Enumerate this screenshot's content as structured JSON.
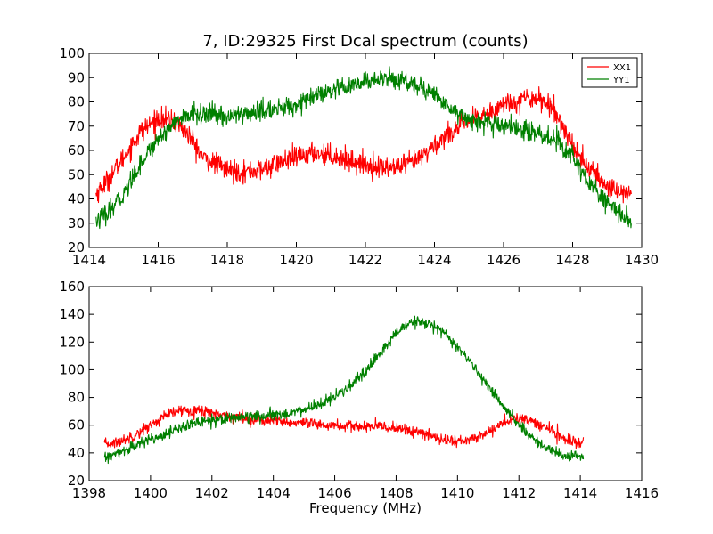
{
  "figure": {
    "title": "7, ID:29325 First Dcal spectrum (counts)",
    "xlabel": "Frequency (MHz)"
  },
  "chart_data": [
    {
      "type": "line",
      "title": "7, ID:29325 First Dcal spectrum (counts)",
      "xlabel": "",
      "ylabel": "",
      "xlim": [
        1414,
        1430
      ],
      "ylim": [
        20,
        100
      ],
      "xticks": [
        "1414",
        "1416",
        "1418",
        "1420",
        "1422",
        "1424",
        "1426",
        "1428",
        "1430"
      ],
      "yticks": [
        "20",
        "30",
        "40",
        "50",
        "60",
        "70",
        "80",
        "90",
        "100"
      ],
      "legend_position": "top-right",
      "grid": false,
      "series": [
        {
          "name": "XX1",
          "color": "#ff0000",
          "noise": 2.2,
          "x": [
            1414.2,
            1414.5,
            1415.0,
            1415.5,
            1416.0,
            1416.5,
            1416.9,
            1417.3,
            1418.0,
            1418.5,
            1419.0,
            1419.5,
            1420.0,
            1420.5,
            1421.0,
            1421.5,
            1422.0,
            1422.5,
            1423.0,
            1423.5,
            1424.0,
            1424.5,
            1425.0,
            1425.5,
            1426.0,
            1426.5,
            1427.0,
            1427.5,
            1428.0,
            1428.5,
            1429.0,
            1429.7
          ],
          "y": [
            42,
            47,
            57,
            68,
            73,
            72,
            66,
            57,
            52,
            51,
            52,
            55,
            57,
            59,
            58,
            56,
            54,
            53,
            53,
            56,
            62,
            68,
            72,
            75,
            79,
            81,
            82,
            76,
            62,
            52,
            45,
            42
          ]
        },
        {
          "name": "YY1",
          "color": "#008000",
          "noise": 2.0,
          "x": [
            1414.2,
            1414.5,
            1415.0,
            1415.5,
            1416.0,
            1416.5,
            1417.0,
            1417.5,
            1418.0,
            1418.5,
            1419.0,
            1419.5,
            1420.0,
            1420.5,
            1421.0,
            1421.5,
            1422.0,
            1422.5,
            1423.0,
            1423.5,
            1424.0,
            1424.5,
            1425.0,
            1425.5,
            1426.0,
            1426.5,
            1427.0,
            1427.5,
            1428.0,
            1428.5,
            1429.0,
            1429.7
          ],
          "y": [
            31,
            33,
            42,
            55,
            65,
            72,
            75,
            75,
            74,
            75,
            76,
            77,
            79,
            82,
            84,
            86,
            88,
            90,
            89,
            87,
            83,
            77,
            73,
            71,
            70,
            69,
            67,
            64,
            58,
            46,
            38,
            30
          ]
        }
      ]
    },
    {
      "type": "line",
      "title": "",
      "xlabel": "Frequency (MHz)",
      "ylabel": "",
      "xlim": [
        1398,
        1416
      ],
      "ylim": [
        20,
        160
      ],
      "xticks": [
        "1398",
        "1400",
        "1402",
        "1404",
        "1406",
        "1408",
        "1410",
        "1412",
        "1414",
        "1416"
      ],
      "yticks": [
        "20",
        "40",
        "60",
        "80",
        "100",
        "120",
        "140",
        "160"
      ],
      "grid": false,
      "series": [
        {
          "name": "XX1",
          "color": "#ff0000",
          "noise": 2.0,
          "x": [
            1398.5,
            1399.0,
            1399.5,
            1400.0,
            1400.5,
            1401.0,
            1401.5,
            1402.0,
            1402.5,
            1403.0,
            1403.5,
            1404.0,
            1404.5,
            1405.0,
            1405.5,
            1406.0,
            1406.5,
            1407.0,
            1407.5,
            1408.0,
            1408.5,
            1409.0,
            1409.5,
            1410.0,
            1410.5,
            1411.0,
            1411.5,
            1412.0,
            1412.5,
            1413.0,
            1413.5,
            1414.1
          ],
          "y": [
            46,
            48,
            53,
            60,
            67,
            71,
            71,
            69,
            67,
            65,
            64,
            63,
            62,
            61,
            60,
            60,
            59,
            59,
            59,
            58,
            56,
            53,
            50,
            48,
            50,
            55,
            62,
            65,
            62,
            57,
            50,
            46
          ]
        },
        {
          "name": "YY1",
          "color": "#008000",
          "noise": 2.0,
          "x": [
            1398.5,
            1399.0,
            1399.5,
            1400.0,
            1400.5,
            1401.0,
            1401.5,
            1402.0,
            1402.5,
            1403.0,
            1403.5,
            1404.0,
            1404.5,
            1405.0,
            1405.5,
            1406.0,
            1406.5,
            1407.0,
            1407.5,
            1408.0,
            1408.5,
            1409.0,
            1409.5,
            1410.0,
            1410.5,
            1411.0,
            1411.5,
            1412.0,
            1412.5,
            1413.0,
            1413.5,
            1414.1
          ],
          "y": [
            36,
            40,
            45,
            50,
            54,
            58,
            62,
            64,
            65,
            66,
            66,
            67,
            69,
            71,
            75,
            80,
            88,
            98,
            112,
            127,
            134,
            134,
            128,
            116,
            103,
            88,
            73,
            60,
            50,
            42,
            38,
            37
          ]
        }
      ]
    }
  ]
}
